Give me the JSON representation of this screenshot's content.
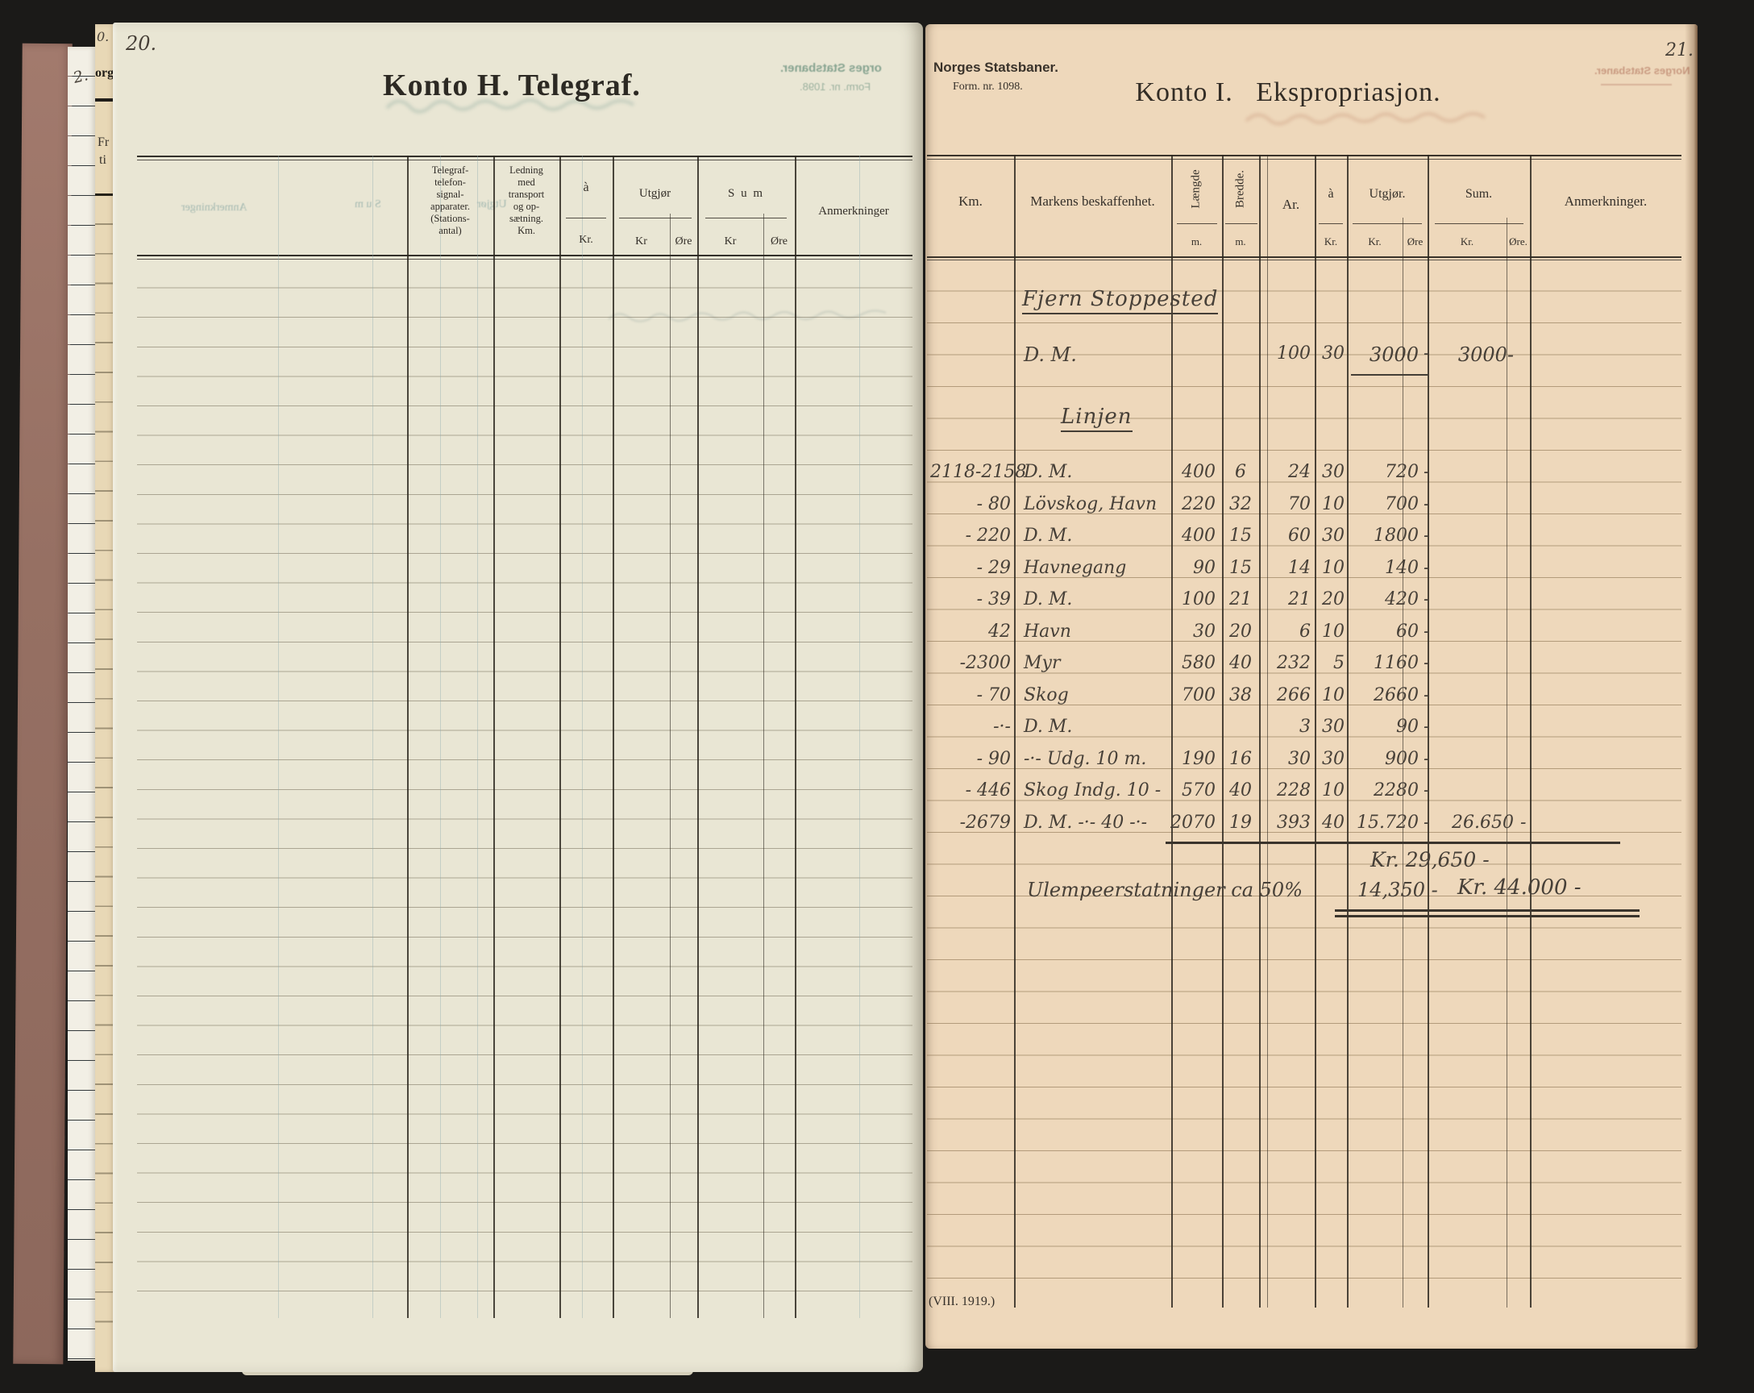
{
  "palette": {
    "background": "#1b1a18",
    "left_page": "#e9e6d4",
    "right_page": "#eed8bb",
    "cover": "#9c7266",
    "white_strip": "#f2efe5",
    "tan_strip": "#e8d8b6",
    "handwriting_ink": "#474038",
    "print_ink": "#35302a"
  },
  "spine": {
    "zero": "0.",
    "two": "2.",
    "org": "org",
    "fr": "Fr",
    "ti": "ti"
  },
  "left_page": {
    "page_number": "20.",
    "title": "Konto H. Telegraf.",
    "header": {
      "telegraf_lines": [
        "Telegraf-",
        "telefon-",
        "signal-",
        "apparater.",
        "(Stations-",
        "antal)"
      ],
      "ledning_lines": [
        "Ledning",
        "med",
        "transport",
        "og op-",
        "sætning.",
        "Km."
      ],
      "a_top": "à",
      "a_kr": "Kr.",
      "utgjor": "Utgjør",
      "utgjor_kr": "Kr",
      "utgjor_ore": "Øre",
      "sum": "S u m",
      "sum_kr": "Kr",
      "sum_ore": "Øre",
      "anm": "Anmerkninger"
    },
    "bleedthrough": {
      "org": "orges Statsbaner.",
      "form": "Form. nr. 1098.",
      "anm": "Anmerkninger",
      "sum": "S u m",
      "utgjor": "Utgjør"
    }
  },
  "right_page": {
    "page_number": "21.",
    "company": "Norges Statsbaner.",
    "form_no": "Form. nr. 1098.",
    "title": "Konto I.   Ekspropriasjon.",
    "footer_note": "(VIII. 1919.)",
    "bleedthrough": {
      "company": "Norges Statsbaner."
    },
    "header": {
      "km": "Km.",
      "markens": "Markens beskaffenhet.",
      "laengde": "Længde",
      "laengde_unit": "m.",
      "bredde": "Bredde.",
      "bredde_unit": "m.",
      "ar": "Ar.",
      "a_top": "à",
      "a_kr": "Kr.",
      "utgjor": "Utgjør.",
      "utgjor_kr": "Kr.",
      "utgjor_ore": "Øre",
      "sum": "Sum.",
      "sum_kr": "Kr.",
      "sum_ore": "Øre.",
      "anm": "Anmerkninger."
    },
    "section1": "Fjern Stoppested",
    "section2": "Linjen",
    "first_row": {
      "markens": "D. M.",
      "ar": "100",
      "a": "30",
      "utgjor": "3000",
      "ore": "-",
      "sum": "3000-"
    },
    "rows": [
      {
        "km": "2118-2158",
        "markens": "D. M.",
        "laengde": "400",
        "bredde": "6",
        "ar": "24",
        "a": "30",
        "utgjor": "720",
        "ore": "-"
      },
      {
        "km": "- 80",
        "markens": "Lövskog, Havn",
        "laengde": "220",
        "bredde": "32",
        "ar": "70",
        "a": "10",
        "utgjor": "700",
        "ore": "-"
      },
      {
        "km": "- 220",
        "markens": "D. M.",
        "laengde": "400",
        "bredde": "15",
        "ar": "60",
        "a": "30",
        "utgjor": "1800",
        "ore": "-"
      },
      {
        "km": "- 29",
        "markens": "Havnegang",
        "laengde": "90",
        "bredde": "15",
        "ar": "14",
        "a": "10",
        "utgjor": "140",
        "ore": "-"
      },
      {
        "km": "- 39",
        "markens": "D. M.",
        "laengde": "100",
        "bredde": "21",
        "ar": "21",
        "a": "20",
        "utgjor": "420",
        "ore": "-"
      },
      {
        "km": "42",
        "markens": "Havn",
        "laengde": "30",
        "bredde": "20",
        "ar": "6",
        "a": "10",
        "utgjor": "60",
        "ore": "-"
      },
      {
        "km": "-2300",
        "markens": "Myr",
        "laengde": "580",
        "bredde": "40",
        "ar": "232",
        "a": "5",
        "utgjor": "1160",
        "ore": "-"
      },
      {
        "km": "- 70",
        "markens": "Skog",
        "laengde": "700",
        "bredde": "38",
        "ar": "266",
        "a": "10",
        "utgjor": "2660",
        "ore": "-"
      },
      {
        "km": "-·-",
        "markens": "D. M.",
        "laengde": "",
        "bredde": "",
        "ar": "3",
        "a": "30",
        "utgjor": "90",
        "ore": "-"
      },
      {
        "km": "- 90",
        "markens": "-·-  Udg. 10 m.",
        "laengde": "190",
        "bredde": "16",
        "ar": "30",
        "a": "30",
        "utgjor": "900",
        "ore": "-"
      },
      {
        "km": "- 446",
        "markens": "Skog  Indg. 10 -",
        "laengde": "570",
        "bredde": "40",
        "ar": "228",
        "a": "10",
        "utgjor": "2280",
        "ore": "-"
      },
      {
        "km": "-2679",
        "markens": "D. M. -·- 40 -·-",
        "laengde": "2070",
        "bredde": "19",
        "ar": "393",
        "a": "40",
        "utgjor": "15.720",
        "ore": "-",
        "sum": "26.650",
        "sum_ore": "-"
      }
    ],
    "totals": {
      "subtotal": "Kr. 29,650 -",
      "ulempe_label": "Ulempeerstatninger ca 50%",
      "ulempe_value": "14,350 -",
      "grand_total": "Kr. 44.000 -"
    }
  }
}
